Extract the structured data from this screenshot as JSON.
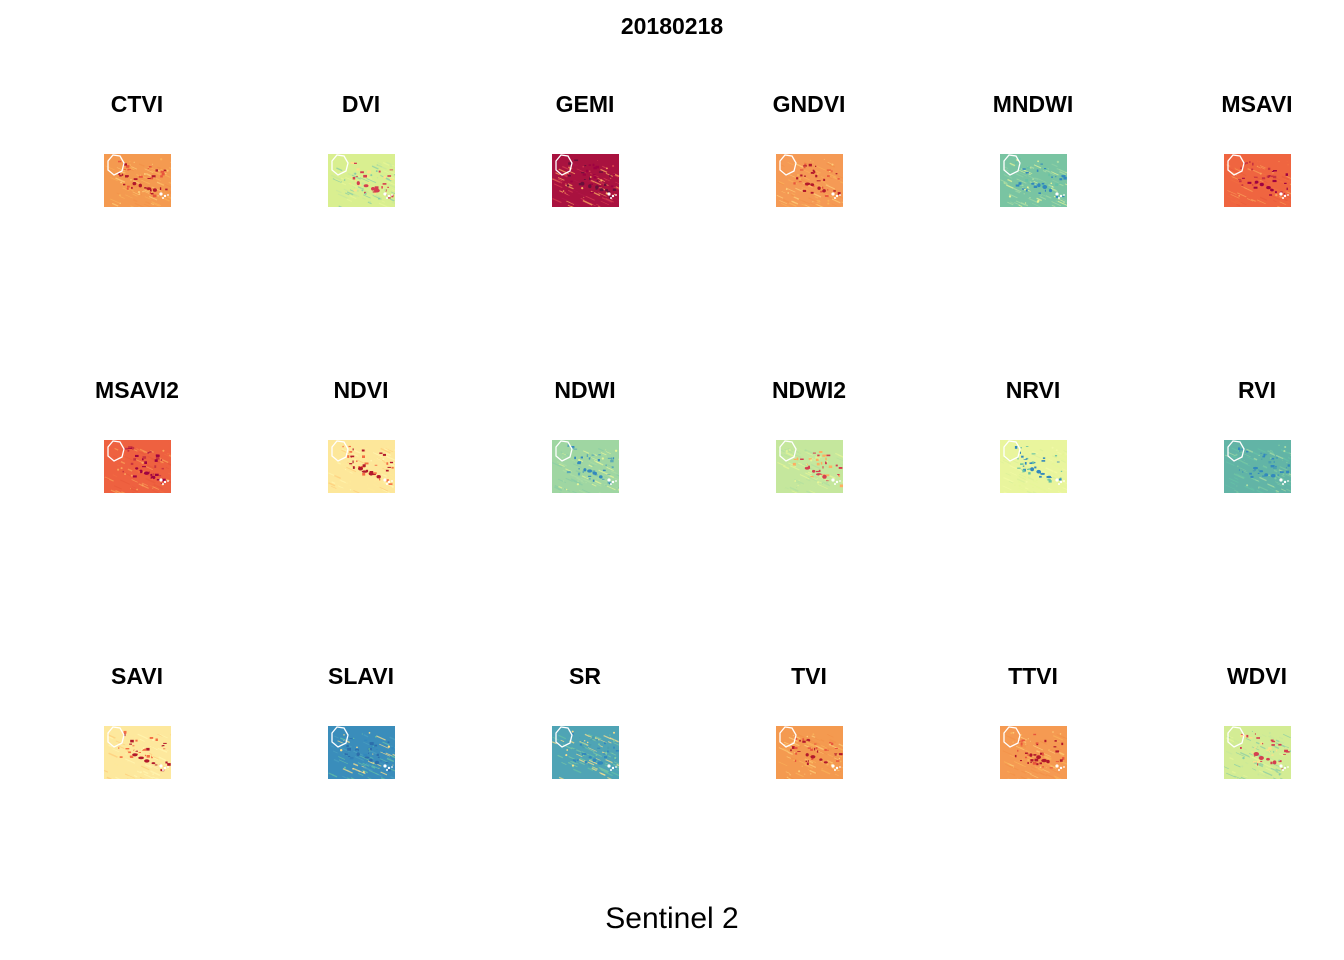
{
  "figure": {
    "title": "20180218",
    "caption": "Sentinel 2"
  },
  "panels": [
    {
      "name": "CTVI",
      "palette": [
        "#b2182b",
        "#e8553c",
        "#f39248",
        "#f9b25a",
        "#fdcd7a"
      ],
      "base": "#f49a50"
    },
    {
      "name": "DVI",
      "palette": [
        "#d53e4f",
        "#fee08b",
        "#e6f598",
        "#c7e89b",
        "#88cca5"
      ],
      "base": "#d9ef90"
    },
    {
      "name": "GEMI",
      "palette": [
        "#6a0f3a",
        "#9e0142",
        "#b01548",
        "#d53e4f",
        "#fdae61"
      ],
      "base": "#a9123f"
    },
    {
      "name": "GNDVI",
      "palette": [
        "#b2182b",
        "#e8553c",
        "#f39248",
        "#f9b25a",
        "#fdcd7a"
      ],
      "base": "#f59a55"
    },
    {
      "name": "MNDWI",
      "palette": [
        "#3288bd",
        "#66c2a5",
        "#8fd0a4",
        "#abdda4",
        "#e6f598"
      ],
      "base": "#79c4a2"
    },
    {
      "name": "MSAVI",
      "palette": [
        "#9e0142",
        "#c8323f",
        "#e85a3b",
        "#f26c40",
        "#f9a25a"
      ],
      "base": "#ef6540"
    },
    {
      "name": "MSAVI2",
      "palette": [
        "#9e0142",
        "#c8323f",
        "#e85a3b",
        "#f26c40",
        "#f9a25a"
      ],
      "base": "#ee6140"
    },
    {
      "name": "NDVI",
      "palette": [
        "#b2182b",
        "#f46d43",
        "#fdcc7a",
        "#fee99a",
        "#fff5b0"
      ],
      "base": "#fde79a"
    },
    {
      "name": "NDWI",
      "palette": [
        "#3288bd",
        "#5aa9b5",
        "#88cca5",
        "#abdda4",
        "#e6f598"
      ],
      "base": "#9fd6a2"
    },
    {
      "name": "NDWI2",
      "palette": [
        "#d53e4f",
        "#fdae61",
        "#c7e89b",
        "#b2e0a0",
        "#e6f598"
      ],
      "base": "#c5e79d"
    },
    {
      "name": "NRVI",
      "palette": [
        "#3288bd",
        "#66c2a5",
        "#d8ef9a",
        "#e6f598",
        "#f1f9a6"
      ],
      "base": "#e9f59d"
    },
    {
      "name": "RVI",
      "palette": [
        "#3288bd",
        "#4a9fb0",
        "#66c2a5",
        "#7ccaa3",
        "#abdda4"
      ],
      "base": "#62b4a6"
    },
    {
      "name": "SAVI",
      "palette": [
        "#b2182b",
        "#f46d43",
        "#fdcc7a",
        "#fee99a",
        "#fff5b0"
      ],
      "base": "#fde89d"
    },
    {
      "name": "SLAVI",
      "palette": [
        "#2c6eab",
        "#3288bd",
        "#4a9fc0",
        "#66c2a5",
        "#fee08b"
      ],
      "base": "#3a8dbb"
    },
    {
      "name": "SR",
      "palette": [
        "#3288bd",
        "#4a9fb0",
        "#66c2a5",
        "#7ccaa3",
        "#fee08b"
      ],
      "base": "#4fa4b5"
    },
    {
      "name": "TVI",
      "palette": [
        "#b2182b",
        "#e8553c",
        "#f39248",
        "#f9b25a",
        "#fdcd7a"
      ],
      "base": "#f49a50"
    },
    {
      "name": "TTVI",
      "palette": [
        "#b2182b",
        "#e8553c",
        "#f39248",
        "#f9b25a",
        "#fdcd7a"
      ],
      "base": "#f59a52"
    },
    {
      "name": "WDVI",
      "palette": [
        "#d53e4f",
        "#fee08b",
        "#e6f598",
        "#c7e89b",
        "#88cca5"
      ],
      "base": "#d3ec94"
    }
  ]
}
